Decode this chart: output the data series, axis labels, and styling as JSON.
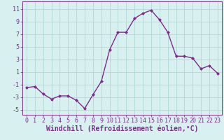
{
  "x": [
    0,
    1,
    2,
    3,
    4,
    5,
    6,
    7,
    8,
    9,
    10,
    11,
    12,
    13,
    14,
    15,
    16,
    17,
    18,
    19,
    20,
    21,
    22,
    23
  ],
  "y": [
    -1.5,
    -1.3,
    -2.5,
    -3.3,
    -2.8,
    -2.8,
    -3.5,
    -4.8,
    -2.6,
    -0.5,
    4.5,
    7.3,
    7.3,
    9.5,
    10.3,
    10.8,
    9.3,
    7.3,
    3.5,
    3.5,
    3.2,
    1.5,
    2.0,
    0.8
  ],
  "line_color": "#7b2d8b",
  "marker": "D",
  "marker_size": 2.0,
  "line_width": 1.0,
  "xlabel": "Windchill (Refroidissement éolien,°C)",
  "xlabel_fontsize": 7,
  "bg_color": "#d8f0f0",
  "grid_color": "#b0d8d8",
  "yticks": [
    -5,
    -3,
    -1,
    1,
    3,
    5,
    7,
    9,
    11
  ],
  "xticks": [
    0,
    1,
    2,
    3,
    4,
    5,
    6,
    7,
    8,
    9,
    10,
    11,
    12,
    13,
    14,
    15,
    16,
    17,
    18,
    19,
    20,
    21,
    22,
    23
  ],
  "ylim": [
    -5.8,
    12.2
  ],
  "xlim": [
    -0.5,
    23.5
  ],
  "tick_fontsize": 6,
  "spine_color": "#7b2d8b"
}
